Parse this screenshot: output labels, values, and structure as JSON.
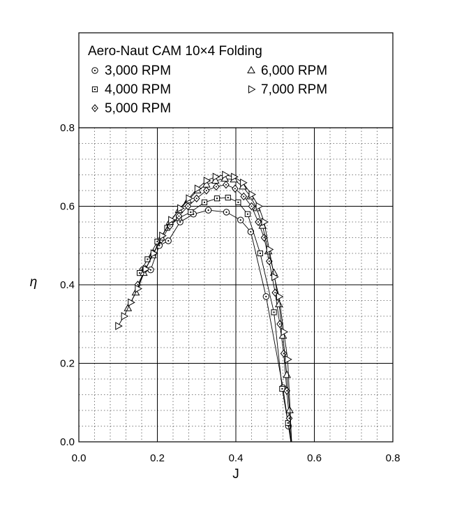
{
  "chart_data": {
    "type": "line",
    "title": "Aero-Naut CAM 10×4 Folding",
    "xlabel": "J",
    "ylabel": "η",
    "xlim": [
      0.0,
      0.8
    ],
    "ylim": [
      0.0,
      0.8
    ],
    "x_ticks": [
      "0.0",
      "0.2",
      "0.4",
      "0.6",
      "0.8"
    ],
    "y_ticks": [
      "0.0",
      "0.2",
      "0.4",
      "0.6",
      "0.8"
    ],
    "x_major": [
      0.0,
      0.2,
      0.4,
      0.6,
      0.8
    ],
    "y_major": [
      0.0,
      0.2,
      0.4,
      0.6,
      0.8
    ],
    "minor_step": 0.04,
    "grid": true,
    "legend_position": "top, above plot area",
    "series": [
      {
        "name": "3,000 RPM",
        "marker": "circle-dot",
        "points": [
          [
            0.163,
            0.438
          ],
          [
            0.183,
            0.438
          ],
          [
            0.205,
            0.5
          ],
          [
            0.228,
            0.512
          ],
          [
            0.258,
            0.56
          ],
          [
            0.292,
            0.58
          ],
          [
            0.33,
            0.59
          ],
          [
            0.376,
            0.585
          ],
          [
            0.412,
            0.565
          ],
          [
            0.438,
            0.535
          ],
          [
            0.477,
            0.37
          ],
          [
            0.52,
            0.138
          ],
          [
            0.534,
            0.04
          ],
          [
            0.542,
            0.0
          ]
        ]
      },
      {
        "name": "4,000 RPM",
        "marker": "square-dot",
        "points": [
          [
            0.155,
            0.43
          ],
          [
            0.175,
            0.465
          ],
          [
            0.2,
            0.51
          ],
          [
            0.225,
            0.545
          ],
          [
            0.255,
            0.57
          ],
          [
            0.285,
            0.585
          ],
          [
            0.32,
            0.61
          ],
          [
            0.352,
            0.62
          ],
          [
            0.38,
            0.622
          ],
          [
            0.406,
            0.61
          ],
          [
            0.43,
            0.58
          ],
          [
            0.462,
            0.48
          ],
          [
            0.497,
            0.33
          ],
          [
            0.518,
            0.135
          ],
          [
            0.533,
            0.048
          ],
          [
            0.54,
            0.0
          ]
        ]
      },
      {
        "name": "5,000 RPM",
        "marker": "diamond-dot",
        "points": [
          [
            0.15,
            0.4
          ],
          [
            0.17,
            0.44
          ],
          [
            0.19,
            0.48
          ],
          [
            0.21,
            0.515
          ],
          [
            0.232,
            0.55
          ],
          [
            0.255,
            0.575
          ],
          [
            0.278,
            0.6
          ],
          [
            0.3,
            0.62
          ],
          [
            0.325,
            0.64
          ],
          [
            0.35,
            0.65
          ],
          [
            0.375,
            0.655
          ],
          [
            0.398,
            0.645
          ],
          [
            0.42,
            0.625
          ],
          [
            0.44,
            0.6
          ],
          [
            0.457,
            0.56
          ],
          [
            0.472,
            0.52
          ],
          [
            0.485,
            0.46
          ],
          [
            0.5,
            0.38
          ],
          [
            0.512,
            0.3
          ],
          [
            0.522,
            0.225
          ],
          [
            0.53,
            0.13
          ],
          [
            0.536,
            0.06
          ],
          [
            0.54,
            0.0
          ]
        ]
      },
      {
        "name": "6,000 RPM",
        "marker": "triangle-up",
        "points": [
          [
            0.125,
            0.34
          ],
          [
            0.145,
            0.38
          ],
          [
            0.165,
            0.43
          ],
          [
            0.188,
            0.475
          ],
          [
            0.21,
            0.52
          ],
          [
            0.232,
            0.56
          ],
          [
            0.255,
            0.59
          ],
          [
            0.278,
            0.615
          ],
          [
            0.302,
            0.64
          ],
          [
            0.325,
            0.655
          ],
          [
            0.348,
            0.665
          ],
          [
            0.372,
            0.67
          ],
          [
            0.395,
            0.668
          ],
          [
            0.418,
            0.65
          ],
          [
            0.437,
            0.625
          ],
          [
            0.453,
            0.595
          ],
          [
            0.468,
            0.55
          ],
          [
            0.483,
            0.485
          ],
          [
            0.497,
            0.43
          ],
          [
            0.51,
            0.35
          ],
          [
            0.52,
            0.27
          ],
          [
            0.53,
            0.17
          ],
          [
            0.537,
            0.08
          ],
          [
            0.542,
            0.0
          ]
        ]
      },
      {
        "name": "7,000 RPM",
        "marker": "triangle-right",
        "points": [
          [
            0.1,
            0.295
          ],
          [
            0.115,
            0.32
          ],
          [
            0.132,
            0.355
          ],
          [
            0.15,
            0.39
          ],
          [
            0.17,
            0.44
          ],
          [
            0.19,
            0.48
          ],
          [
            0.212,
            0.525
          ],
          [
            0.235,
            0.565
          ],
          [
            0.258,
            0.595
          ],
          [
            0.28,
            0.62
          ],
          [
            0.302,
            0.645
          ],
          [
            0.325,
            0.665
          ],
          [
            0.348,
            0.675
          ],
          [
            0.372,
            0.68
          ],
          [
            0.395,
            0.675
          ],
          [
            0.418,
            0.66
          ],
          [
            0.44,
            0.63
          ],
          [
            0.458,
            0.6
          ],
          [
            0.472,
            0.56
          ],
          [
            0.485,
            0.49
          ],
          [
            0.498,
            0.42
          ],
          [
            0.51,
            0.37
          ],
          [
            0.522,
            0.28
          ],
          [
            0.532,
            0.21
          ],
          [
            0.542,
            0.0
          ]
        ]
      }
    ]
  }
}
